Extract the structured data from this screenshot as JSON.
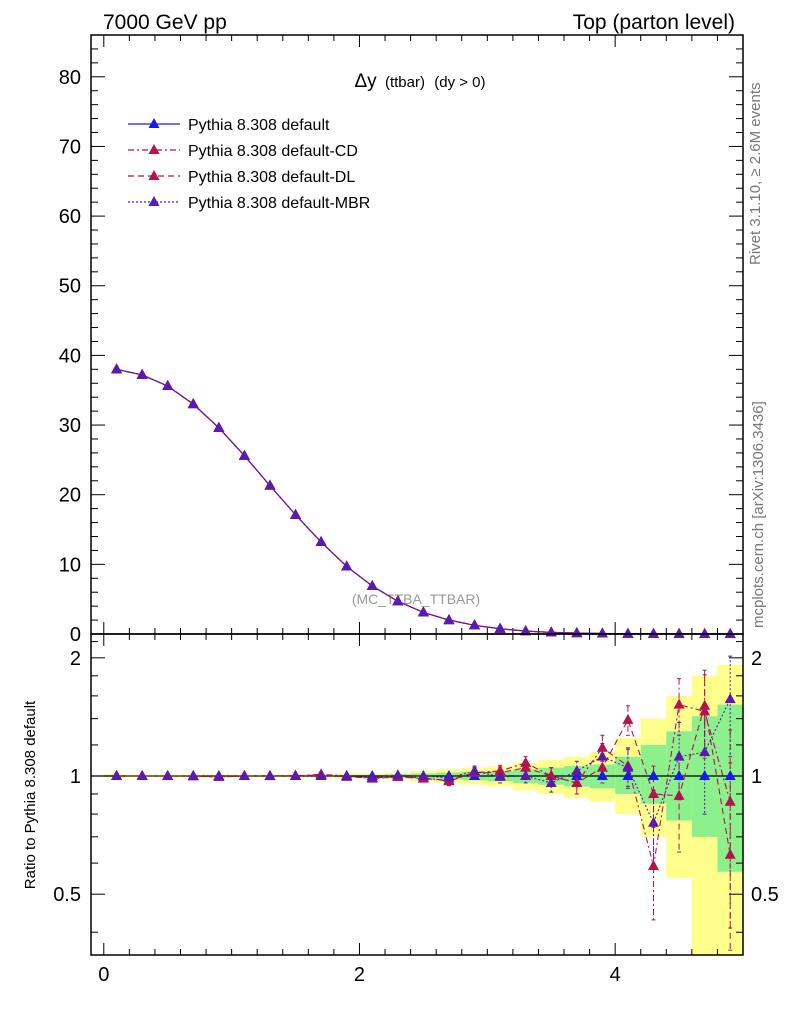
{
  "header": {
    "left": "7000 GeV pp",
    "right": "Top (parton level)"
  },
  "side": {
    "rivet": "Rivet 3.1.10, ≥ 2.6M events",
    "mcplots": "mcplots.cern.ch [arXiv:1306.3436]"
  },
  "colors": {
    "default": "#1a1ae6",
    "cd": "#b5124f",
    "dl": "#b5124f",
    "mbr": "#5a1ab0",
    "band_outer": "#ffff8c",
    "band_inner": "#8cf08c"
  },
  "chart_data": [
    {
      "type": "line",
      "title": "Δy (ttbar) (dy > 0)",
      "title_parts": {
        "main": "Δy",
        "small": "(ttbar)",
        "rest": "(dy > 0)"
      },
      "watermark": "(MC_TTBA_TTBAR)",
      "xlim": [
        -0.1,
        5.0
      ],
      "ylim": [
        0,
        86
      ],
      "y_ticks": [
        0,
        10,
        20,
        30,
        40,
        50,
        60,
        70,
        80
      ],
      "y_tick_labels": [
        "0",
        "10",
        "20",
        "30",
        "40",
        "50",
        "60",
        "70",
        "80"
      ],
      "legend_position": "top-left",
      "x": [
        0.1,
        0.3,
        0.5,
        0.7,
        0.9,
        1.1,
        1.3,
        1.5,
        1.7,
        1.9,
        2.1,
        2.3,
        2.5,
        2.7,
        2.9,
        3.1,
        3.3,
        3.5,
        3.7,
        3.9,
        4.1,
        4.3,
        4.5,
        4.7,
        4.9
      ],
      "series": [
        {
          "name": "Pythia 8.308 default",
          "key": "default",
          "style": "solid",
          "values": [
            38.0,
            37.2,
            35.6,
            33.0,
            29.6,
            25.6,
            21.3,
            17.1,
            13.2,
            9.7,
            6.9,
            4.7,
            3.1,
            2.0,
            1.25,
            0.75,
            0.42,
            0.23,
            0.13,
            0.07,
            0.04,
            0.02,
            0.01,
            0.006,
            0.003
          ]
        },
        {
          "name": "Pythia 8.308 default-CD",
          "key": "cd",
          "style": "dashdot",
          "values": [
            38.0,
            37.2,
            35.6,
            33.0,
            29.6,
            25.6,
            21.3,
            17.1,
            13.2,
            9.7,
            6.9,
            4.7,
            3.1,
            2.0,
            1.25,
            0.75,
            0.42,
            0.23,
            0.13,
            0.07,
            0.04,
            0.02,
            0.01,
            0.006,
            0.003
          ]
        },
        {
          "name": "Pythia 8.308 default-DL",
          "key": "dl",
          "style": "dashed",
          "values": [
            38.0,
            37.2,
            35.6,
            33.0,
            29.6,
            25.6,
            21.3,
            17.1,
            13.2,
            9.7,
            6.9,
            4.7,
            3.1,
            2.0,
            1.25,
            0.75,
            0.42,
            0.23,
            0.13,
            0.07,
            0.04,
            0.02,
            0.01,
            0.006,
            0.003
          ]
        },
        {
          "name": "Pythia 8.308 default-MBR",
          "key": "mbr",
          "style": "dotted",
          "values": [
            38.0,
            37.2,
            35.6,
            33.0,
            29.6,
            25.6,
            21.3,
            17.1,
            13.2,
            9.7,
            6.9,
            4.7,
            3.1,
            2.0,
            1.25,
            0.75,
            0.42,
            0.23,
            0.13,
            0.07,
            0.04,
            0.02,
            0.01,
            0.006,
            0.003
          ]
        }
      ]
    },
    {
      "type": "line",
      "ylabel": "Ratio to Pythia 8.308 default",
      "xlim": [
        -0.1,
        5.0
      ],
      "ylim": [
        0.35,
        2.3
      ],
      "x_ticks": [
        0,
        2,
        4
      ],
      "x_tick_labels": [
        "0",
        "2",
        "4"
      ],
      "y_ticks": [
        0.5,
        1,
        2
      ],
      "y_tick_labels": [
        "0.5",
        "1",
        "2"
      ],
      "bands": {
        "edges": [
          0.0,
          0.2,
          0.4,
          0.6,
          0.8,
          1.0,
          1.2,
          1.4,
          1.6,
          1.8,
          2.0,
          2.2,
          2.4,
          2.6,
          2.8,
          3.0,
          3.2,
          3.4,
          3.6,
          3.8,
          4.0,
          4.2,
          4.4,
          4.6,
          4.8,
          5.0
        ],
        "outer_low": [
          0.99,
          0.99,
          0.99,
          0.99,
          0.99,
          0.99,
          0.99,
          0.99,
          0.99,
          0.985,
          0.985,
          0.98,
          0.97,
          0.96,
          0.95,
          0.94,
          0.92,
          0.9,
          0.88,
          0.86,
          0.8,
          0.7,
          0.55,
          0.35,
          0.35
        ],
        "outer_high": [
          1.01,
          1.01,
          1.01,
          1.01,
          1.01,
          1.01,
          1.01,
          1.01,
          1.01,
          1.015,
          1.015,
          1.02,
          1.03,
          1.04,
          1.05,
          1.06,
          1.08,
          1.1,
          1.12,
          1.15,
          1.25,
          1.4,
          1.6,
          1.8,
          1.92
        ],
        "inner_low": [
          0.995,
          0.995,
          0.995,
          0.995,
          0.995,
          0.995,
          0.995,
          0.995,
          0.995,
          0.993,
          0.993,
          0.99,
          0.985,
          0.98,
          0.975,
          0.97,
          0.96,
          0.95,
          0.94,
          0.93,
          0.9,
          0.85,
          0.77,
          0.7,
          0.57
        ],
        "inner_high": [
          1.005,
          1.005,
          1.005,
          1.005,
          1.005,
          1.005,
          1.005,
          1.005,
          1.005,
          1.007,
          1.007,
          1.01,
          1.015,
          1.02,
          1.025,
          1.03,
          1.04,
          1.05,
          1.06,
          1.07,
          1.12,
          1.2,
          1.3,
          1.42,
          1.52
        ]
      },
      "x": [
        0.1,
        0.3,
        0.5,
        0.7,
        0.9,
        1.1,
        1.3,
        1.5,
        1.7,
        1.9,
        2.1,
        2.3,
        2.5,
        2.7,
        2.9,
        3.1,
        3.3,
        3.5,
        3.7,
        3.9,
        4.1,
        4.3,
        4.5,
        4.7,
        4.9
      ],
      "series": [
        {
          "name": "Pythia 8.308 default",
          "key": "default",
          "style": "solid",
          "values": [
            1,
            1,
            1,
            1,
            1,
            1,
            1,
            1,
            1,
            1,
            1,
            1,
            1,
            1,
            1,
            1,
            1,
            1,
            1,
            1,
            1,
            1,
            1,
            1,
            1
          ]
        },
        {
          "name": "Pythia 8.308 default-CD",
          "key": "cd",
          "style": "dashdot",
          "values": [
            1.0,
            1.0,
            1.0,
            0.998,
            0.995,
            1.0,
            0.999,
            1.0,
            1.01,
            1.0,
            0.985,
            0.995,
            0.99,
            0.97,
            1.02,
            1.03,
            1.08,
            1.0,
            0.96,
            1.18,
            1.06,
            0.59,
            1.52,
            1.46,
            0.86
          ]
        },
        {
          "name": "Pythia 8.308 default-DL",
          "key": "dl",
          "style": "dashed",
          "values": [
            1.0,
            1.0,
            1.0,
            1.0,
            0.995,
            1.0,
            1.0,
            1.002,
            1.005,
            0.995,
            0.99,
            0.995,
            0.985,
            0.975,
            1.02,
            1.02,
            1.05,
            1.0,
            0.96,
            1.05,
            1.39,
            0.9,
            0.89,
            1.51,
            0.63
          ]
        },
        {
          "name": "Pythia 8.308 default-MBR",
          "key": "mbr",
          "style": "dotted",
          "values": [
            1.0,
            1.0,
            1.0,
            1.0,
            1.0,
            1.0,
            1.0,
            1.0,
            1.0,
            1.0,
            0.99,
            1.005,
            1.0,
            0.99,
            1.03,
            0.995,
            1.0,
            0.96,
            1.03,
            1.12,
            1.05,
            0.76,
            1.12,
            1.15,
            1.57
          ]
        }
      ],
      "errors": {
        "cd": [
          0.005,
          0.005,
          0.005,
          0.005,
          0.005,
          0.005,
          0.005,
          0.006,
          0.008,
          0.01,
          0.012,
          0.015,
          0.02,
          0.025,
          0.03,
          0.035,
          0.04,
          0.05,
          0.06,
          0.09,
          0.12,
          0.16,
          0.25,
          0.35,
          0.45
        ],
        "dl": [
          0.005,
          0.005,
          0.005,
          0.005,
          0.005,
          0.005,
          0.005,
          0.006,
          0.008,
          0.01,
          0.012,
          0.015,
          0.02,
          0.025,
          0.03,
          0.035,
          0.04,
          0.05,
          0.06,
          0.09,
          0.12,
          0.16,
          0.25,
          0.35,
          0.45
        ],
        "mbr": [
          0.005,
          0.005,
          0.005,
          0.005,
          0.005,
          0.005,
          0.005,
          0.006,
          0.008,
          0.01,
          0.012,
          0.015,
          0.02,
          0.025,
          0.03,
          0.035,
          0.04,
          0.05,
          0.06,
          0.09,
          0.12,
          0.16,
          0.25,
          0.35,
          0.45
        ]
      }
    }
  ]
}
